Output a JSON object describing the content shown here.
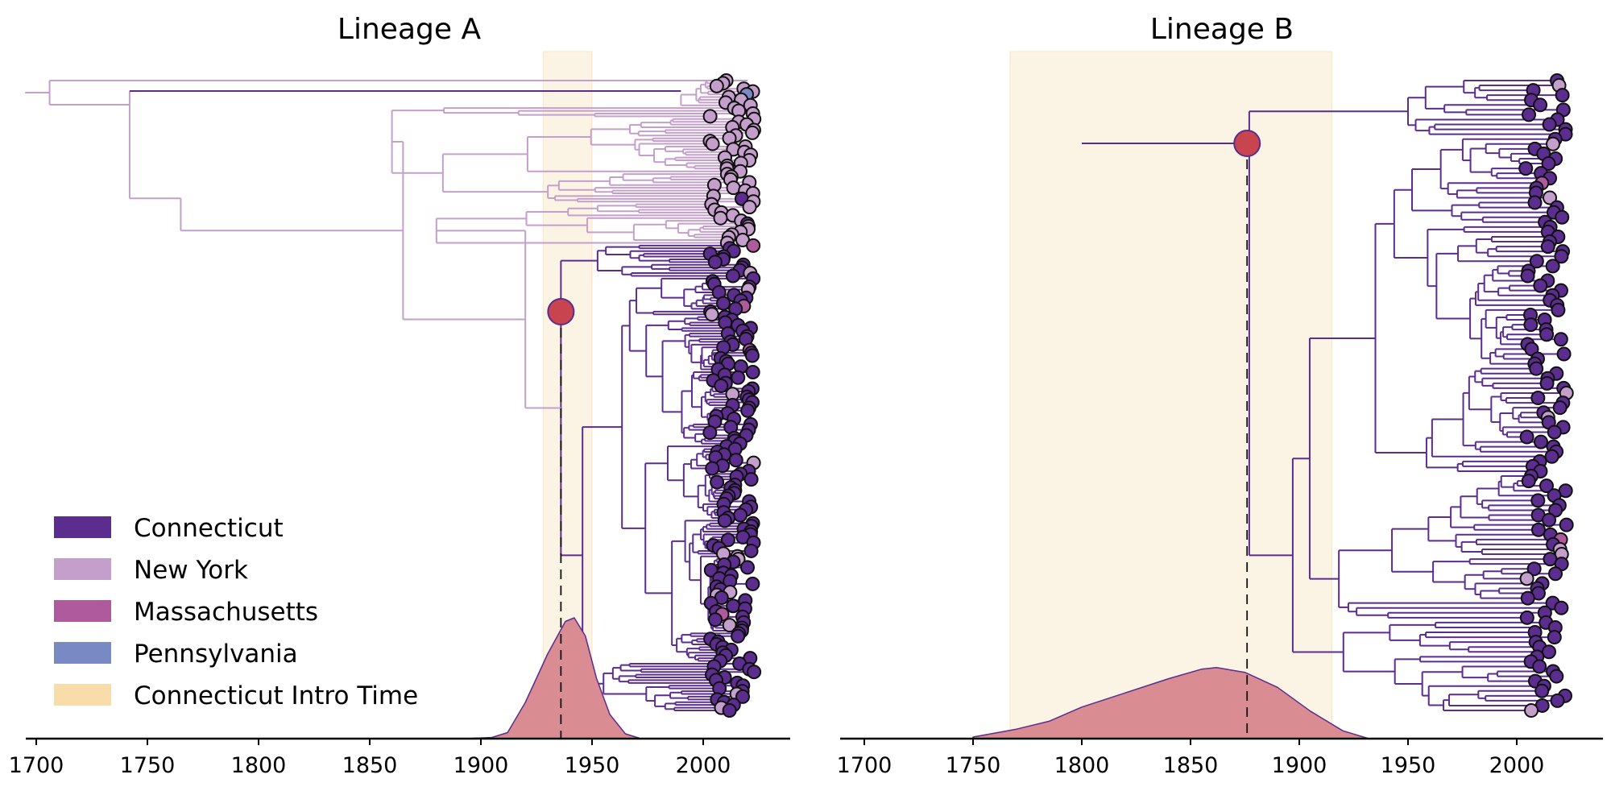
{
  "chart_data": {
    "type": "phylogenetic-tree",
    "x_ticks": [
      "1700",
      "1750",
      "1800",
      "1850",
      "1900",
      "1950",
      "2000"
    ],
    "x_tick_values": [
      1700,
      1750,
      1800,
      1850,
      1900,
      1950,
      2000
    ],
    "xlim": [
      1690,
      2040
    ],
    "legend": {
      "placement": "lower-left",
      "entries": [
        {
          "label": "Connecticut",
          "color": "#5b2d8e"
        },
        {
          "label": "New York",
          "color": "#c59fcb"
        },
        {
          "label": "Massachusetts",
          "color": "#b05a9e"
        },
        {
          "label": "Pennsylvania",
          "color": "#7889c3"
        },
        {
          "label": "Connecticut Intro Time",
          "color": "#f8dcaa"
        }
      ]
    },
    "panels": [
      {
        "title": "Lineage A",
        "root_year": 1695,
        "intro_time_estimate": 1936,
        "intro_interval": [
          1928,
          1950
        ],
        "tip_count_approx": 230,
        "density_points": [
          [
            1893,
            0
          ],
          [
            1905,
            0.01
          ],
          [
            1912,
            0.05
          ],
          [
            1920,
            0.3
          ],
          [
            1930,
            0.7
          ],
          [
            1938,
            0.97
          ],
          [
            1942,
            1
          ],
          [
            1947,
            0.85
          ],
          [
            1952,
            0.5
          ],
          [
            1958,
            0.2
          ],
          [
            1965,
            0.04
          ],
          [
            1972,
            0
          ]
        ]
      },
      {
        "title": "Lineage B",
        "root_year": 1800,
        "intro_time_estimate": 1876,
        "intro_interval": [
          1767,
          1915
        ],
        "tip_count_approx": 130,
        "density_points": [
          [
            1750,
            0.02
          ],
          [
            1770,
            0.12
          ],
          [
            1785,
            0.22
          ],
          [
            1800,
            0.4
          ],
          [
            1820,
            0.58
          ],
          [
            1840,
            0.76
          ],
          [
            1855,
            0.88
          ],
          [
            1862,
            0.9
          ],
          [
            1875,
            0.84
          ],
          [
            1890,
            0.65
          ],
          [
            1905,
            0.35
          ],
          [
            1920,
            0.1
          ],
          [
            1932,
            0
          ]
        ]
      }
    ]
  }
}
